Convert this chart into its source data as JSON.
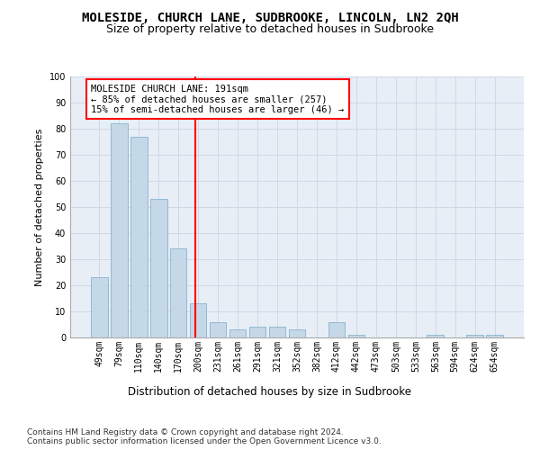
{
  "title": "MOLESIDE, CHURCH LANE, SUDBROOKE, LINCOLN, LN2 2QH",
  "subtitle": "Size of property relative to detached houses in Sudbrooke",
  "xlabel": "Distribution of detached houses by size in Sudbrooke",
  "ylabel": "Number of detached properties",
  "categories": [
    "49sqm",
    "79sqm",
    "110sqm",
    "140sqm",
    "170sqm",
    "200sqm",
    "231sqm",
    "261sqm",
    "291sqm",
    "321sqm",
    "352sqm",
    "382sqm",
    "412sqm",
    "442sqm",
    "473sqm",
    "503sqm",
    "533sqm",
    "563sqm",
    "594sqm",
    "624sqm",
    "654sqm"
  ],
  "values": [
    23,
    82,
    77,
    53,
    34,
    13,
    6,
    3,
    4,
    4,
    3,
    0,
    6,
    1,
    0,
    0,
    0,
    1,
    0,
    1,
    1
  ],
  "bar_color": "#c5d8e8",
  "bar_edgecolor": "#7aaac8",
  "vline_color": "red",
  "annotation_box_text": "MOLESIDE CHURCH LANE: 191sqm\n← 85% of detached houses are smaller (257)\n15% of semi-detached houses are larger (46) →",
  "annotation_box_edgecolor": "red",
  "annotation_box_facecolor": "white",
  "ylim": [
    0,
    100
  ],
  "yticks": [
    0,
    10,
    20,
    30,
    40,
    50,
    60,
    70,
    80,
    90,
    100
  ],
  "grid_color": "#d0d8e8",
  "background_color": "#e8eef5",
  "footnote": "Contains HM Land Registry data © Crown copyright and database right 2024.\nContains public sector information licensed under the Open Government Licence v3.0.",
  "title_fontsize": 10,
  "subtitle_fontsize": 9,
  "xlabel_fontsize": 8.5,
  "ylabel_fontsize": 8,
  "tick_fontsize": 7,
  "annotation_fontsize": 7.5,
  "footnote_fontsize": 6.5
}
